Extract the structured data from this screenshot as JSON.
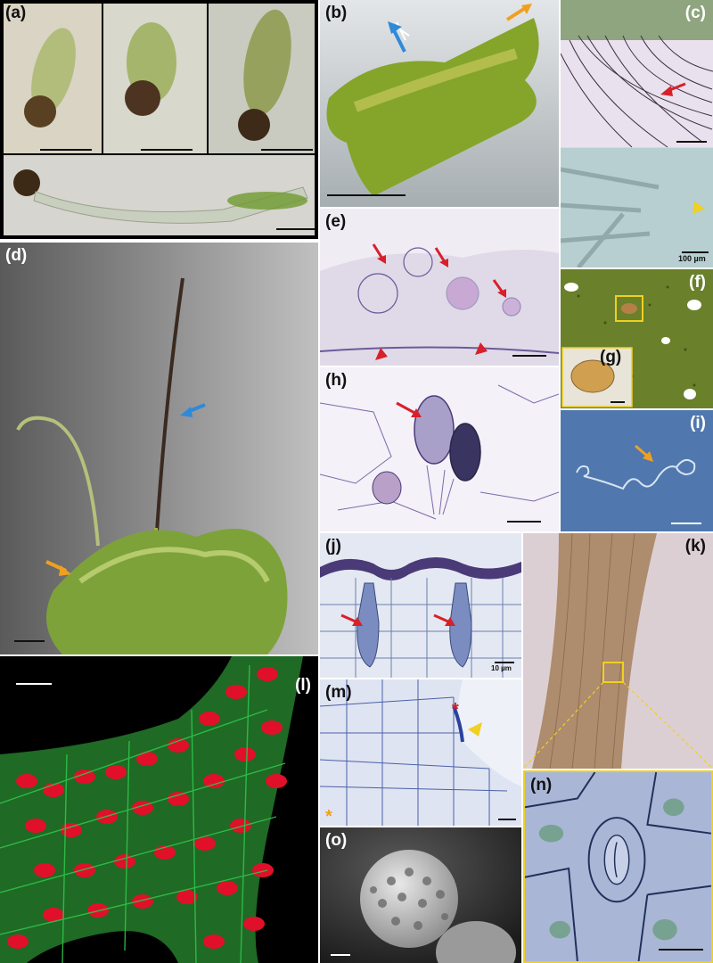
{
  "panels": {
    "a": {
      "label": "(a)"
    },
    "b": {
      "label": "(b)"
    },
    "c": {
      "label": "(c)",
      "scale_text": "100 µm"
    },
    "d": {
      "label": "(d)"
    },
    "e": {
      "label": "(e)"
    },
    "f": {
      "label": "(f)"
    },
    "g": {
      "label": "(g)"
    },
    "h": {
      "label": "(h)"
    },
    "i": {
      "label": "(i)"
    },
    "j": {
      "label": "(j)",
      "scale_text": "10 µm"
    },
    "k": {
      "label": "(k)"
    },
    "l": {
      "label": "(l)"
    },
    "m": {
      "label": "(m)"
    },
    "n": {
      "label": "(n)"
    },
    "o": {
      "label": "(o)"
    }
  },
  "colors": {
    "arrow_red": "#d8202a",
    "arrow_blue": "#2f8ad8",
    "arrow_orange": "#f0a020",
    "marker_yellow": "#f0d020",
    "fluorescence_red": "#e0102a",
    "fluorescence_green": "#2ec24a"
  }
}
